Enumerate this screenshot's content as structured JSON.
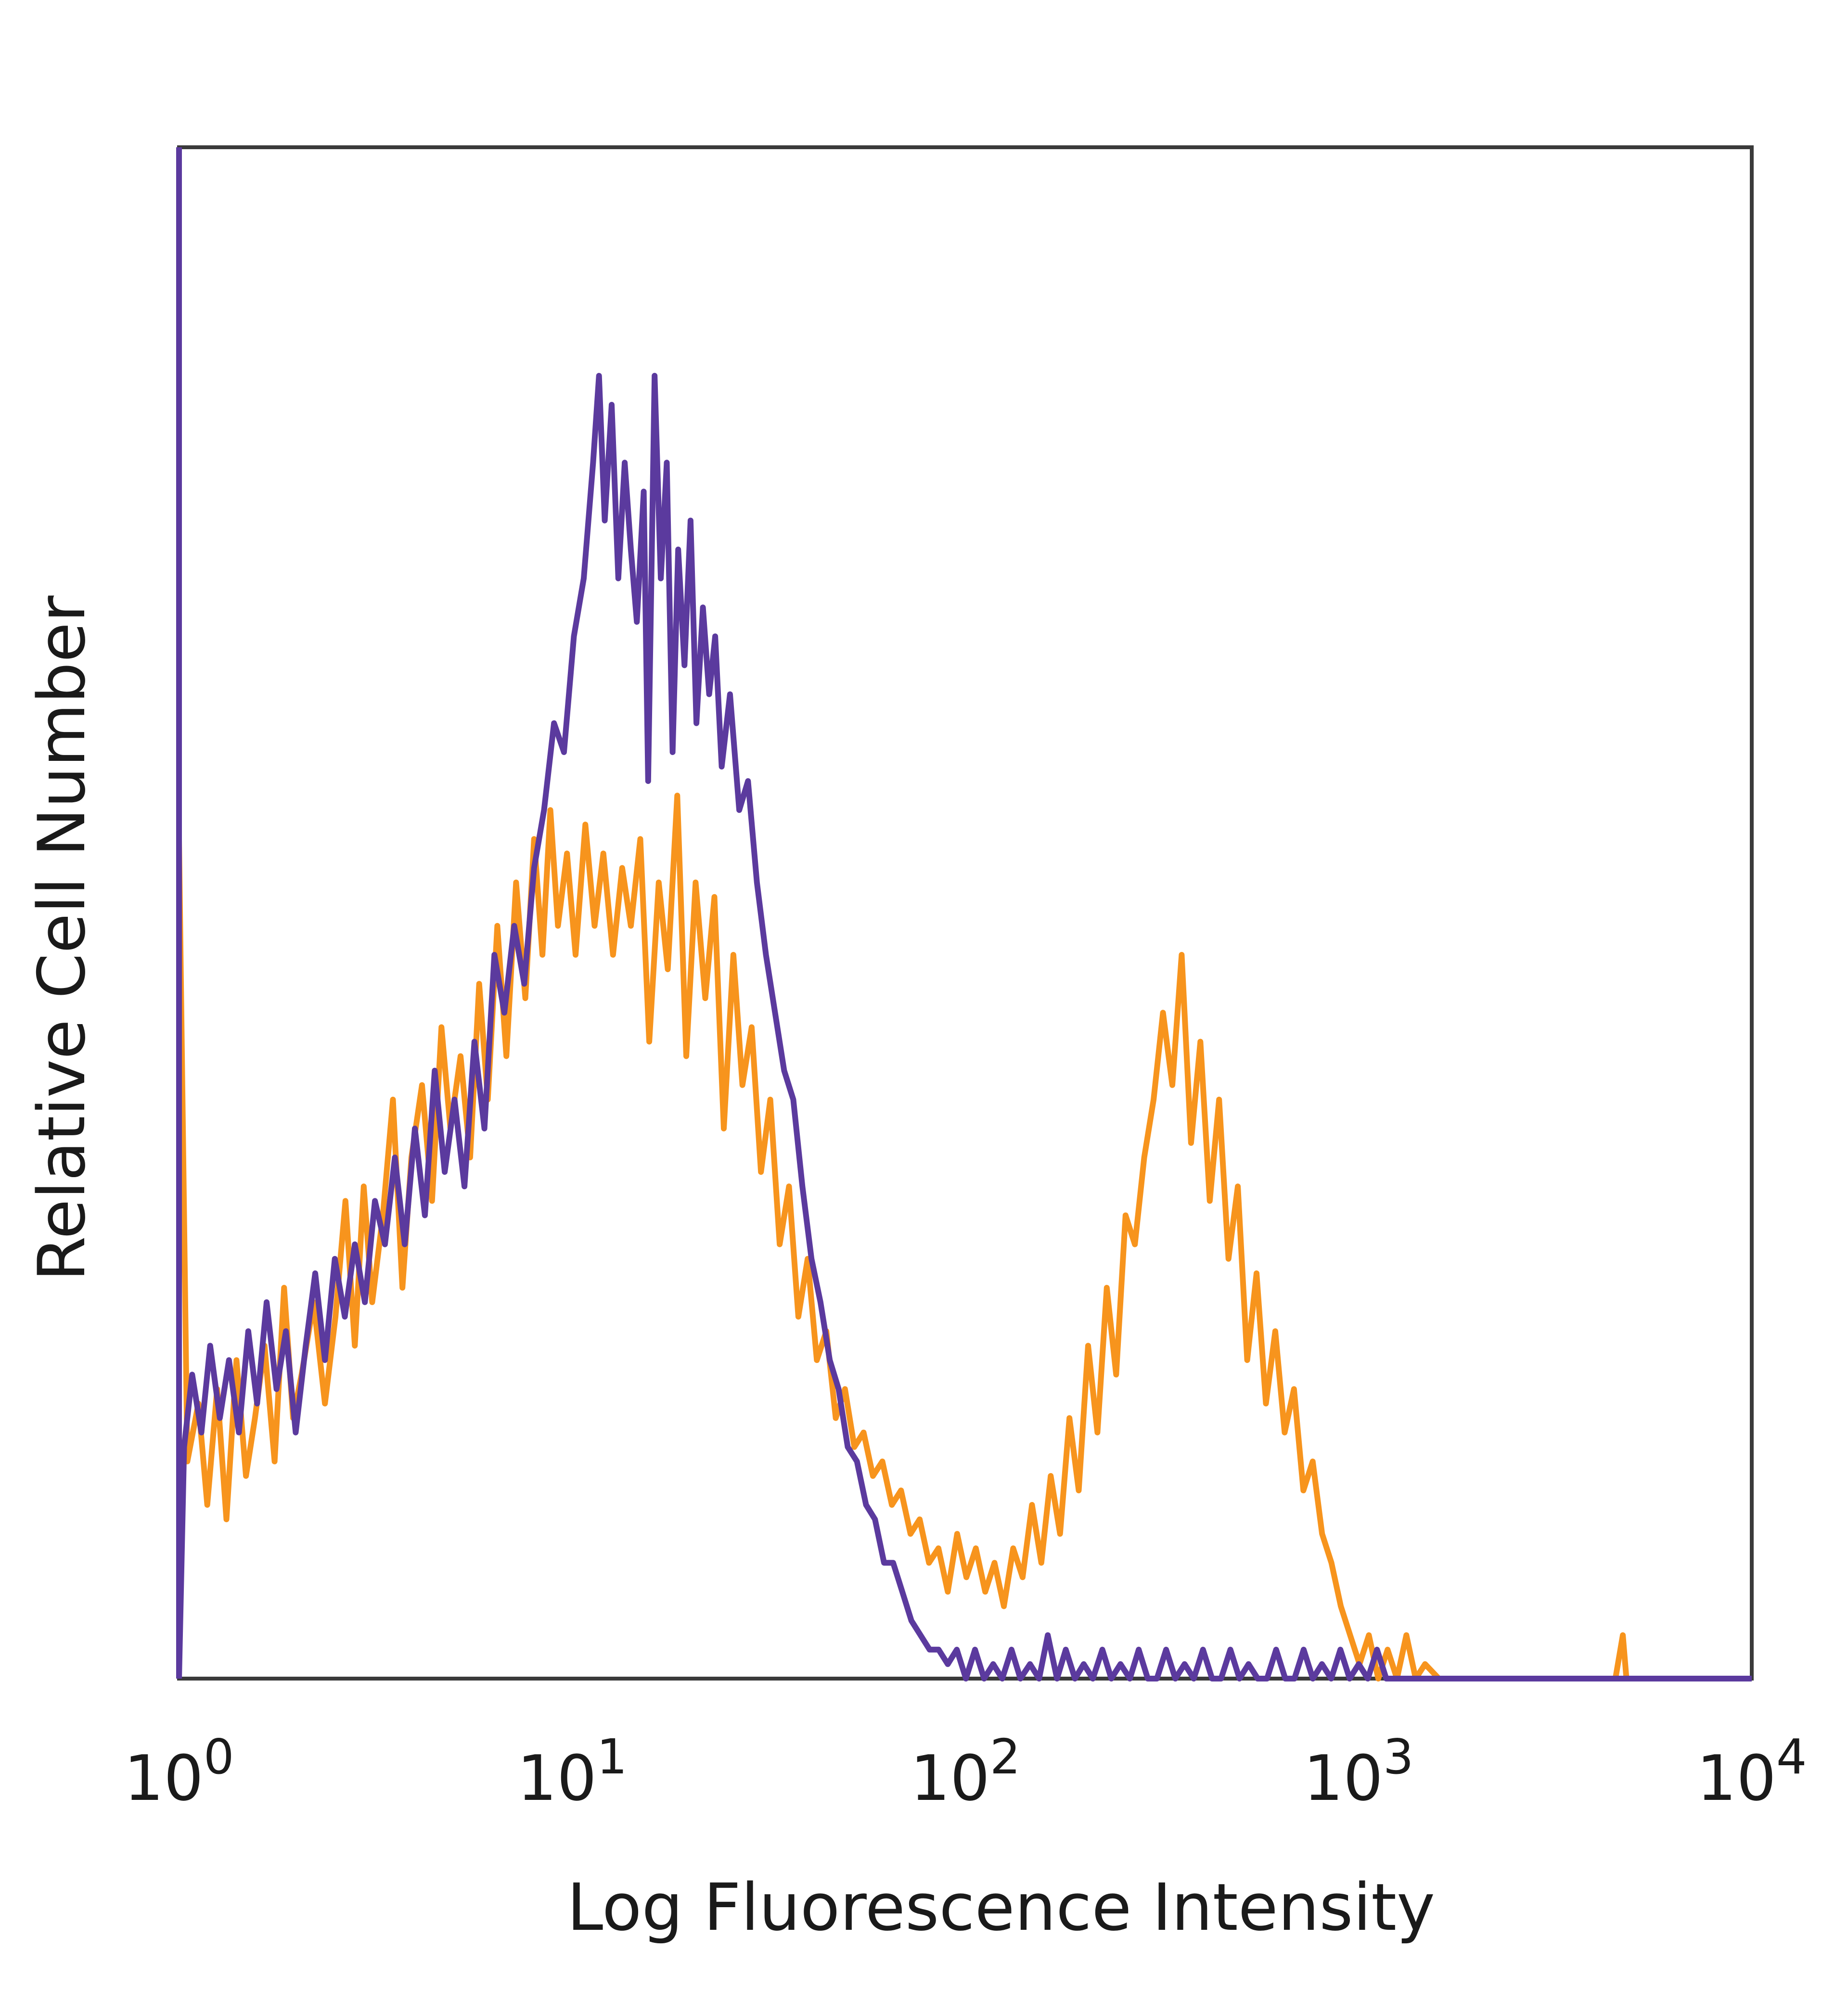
{
  "chart_data": {
    "type": "line",
    "title": "",
    "xlabel": "Log Fluorescence Intensity",
    "ylabel": "Relative Cell Number",
    "x_scale": "log",
    "xlim": [
      1,
      10000
    ],
    "ylim": [
      0,
      1
    ],
    "grid": false,
    "x_ticks": [
      {
        "value": 1,
        "base": "10",
        "exp": "0"
      },
      {
        "value": 10,
        "base": "10",
        "exp": "1"
      },
      {
        "value": 100,
        "base": "10",
        "exp": "2"
      },
      {
        "value": 1000,
        "base": "10",
        "exp": "3"
      },
      {
        "value": 10000,
        "base": "10",
        "exp": "4"
      }
    ],
    "series": [
      {
        "color": "#f7941d",
        "points": [
          [
            1.0,
            0.58
          ],
          [
            1.05,
            0.15
          ],
          [
            1.12,
            0.19
          ],
          [
            1.18,
            0.12
          ],
          [
            1.25,
            0.2
          ],
          [
            1.32,
            0.11
          ],
          [
            1.4,
            0.22
          ],
          [
            1.48,
            0.14
          ],
          [
            1.56,
            0.18
          ],
          [
            1.65,
            0.23
          ],
          [
            1.75,
            0.15
          ],
          [
            1.85,
            0.27
          ],
          [
            1.95,
            0.18
          ],
          [
            2.05,
            0.21
          ],
          [
            2.2,
            0.26
          ],
          [
            2.35,
            0.19
          ],
          [
            2.5,
            0.25
          ],
          [
            2.65,
            0.33
          ],
          [
            2.8,
            0.23
          ],
          [
            2.95,
            0.34
          ],
          [
            3.1,
            0.26
          ],
          [
            3.3,
            0.32
          ],
          [
            3.5,
            0.4
          ],
          [
            3.7,
            0.27
          ],
          [
            3.9,
            0.36
          ],
          [
            4.15,
            0.41
          ],
          [
            4.4,
            0.33
          ],
          [
            4.65,
            0.45
          ],
          [
            4.9,
            0.38
          ],
          [
            5.2,
            0.43
          ],
          [
            5.5,
            0.36
          ],
          [
            5.8,
            0.48
          ],
          [
            6.1,
            0.4
          ],
          [
            6.45,
            0.52
          ],
          [
            6.8,
            0.43
          ],
          [
            7.2,
            0.55
          ],
          [
            7.6,
            0.47
          ],
          [
            8.0,
            0.58
          ],
          [
            8.4,
            0.5
          ],
          [
            8.8,
            0.6
          ],
          [
            9.2,
            0.52
          ],
          [
            9.7,
            0.57
          ],
          [
            10.2,
            0.5
          ],
          [
            10.8,
            0.59
          ],
          [
            11.4,
            0.52
          ],
          [
            12.0,
            0.57
          ],
          [
            12.7,
            0.5
          ],
          [
            13.4,
            0.56
          ],
          [
            14.1,
            0.52
          ],
          [
            14.9,
            0.58
          ],
          [
            15.7,
            0.44
          ],
          [
            16.6,
            0.55
          ],
          [
            17.5,
            0.49
          ],
          [
            18.5,
            0.61
          ],
          [
            19.5,
            0.43
          ],
          [
            20.6,
            0.55
          ],
          [
            21.8,
            0.47
          ],
          [
            23.0,
            0.54
          ],
          [
            24.3,
            0.38
          ],
          [
            25.7,
            0.5
          ],
          [
            27.1,
            0.41
          ],
          [
            28.6,
            0.45
          ],
          [
            30.2,
            0.35
          ],
          [
            31.9,
            0.4
          ],
          [
            33.7,
            0.3
          ],
          [
            35.6,
            0.34
          ],
          [
            37.6,
            0.25
          ],
          [
            39.7,
            0.29
          ],
          [
            41.9,
            0.22
          ],
          [
            44.3,
            0.24
          ],
          [
            46.8,
            0.18
          ],
          [
            49.4,
            0.2
          ],
          [
            52.2,
            0.16
          ],
          [
            55.1,
            0.17
          ],
          [
            58.2,
            0.14
          ],
          [
            61.5,
            0.15
          ],
          [
            65.0,
            0.12
          ],
          [
            68.6,
            0.13
          ],
          [
            72.5,
            0.1
          ],
          [
            76.5,
            0.11
          ],
          [
            80.8,
            0.08
          ],
          [
            85.4,
            0.09
          ],
          [
            90.2,
            0.06
          ],
          [
            95.3,
            0.1
          ],
          [
            100.6,
            0.07
          ],
          [
            106.3,
            0.09
          ],
          [
            112.3,
            0.06
          ],
          [
            118.6,
            0.08
          ],
          [
            125.3,
            0.05
          ],
          [
            132.3,
            0.09
          ],
          [
            139.8,
            0.07
          ],
          [
            147.7,
            0.12
          ],
          [
            156.0,
            0.08
          ],
          [
            164.8,
            0.14
          ],
          [
            174.1,
            0.1
          ],
          [
            183.9,
            0.18
          ],
          [
            194.2,
            0.13
          ],
          [
            205.2,
            0.23
          ],
          [
            216.7,
            0.17
          ],
          [
            228.9,
            0.27
          ],
          [
            241.8,
            0.21
          ],
          [
            255.5,
            0.32
          ],
          [
            269.8,
            0.3
          ],
          [
            285.0,
            0.36
          ],
          [
            301.1,
            0.4
          ],
          [
            318.1,
            0.46
          ],
          [
            336.0,
            0.41
          ],
          [
            354.9,
            0.5
          ],
          [
            374.9,
            0.37
          ],
          [
            396.0,
            0.44
          ],
          [
            418.3,
            0.33
          ],
          [
            441.9,
            0.4
          ],
          [
            466.8,
            0.29
          ],
          [
            493.1,
            0.34
          ],
          [
            520.9,
            0.22
          ],
          [
            550.2,
            0.28
          ],
          [
            581.2,
            0.19
          ],
          [
            614.0,
            0.24
          ],
          [
            648.6,
            0.17
          ],
          [
            685.1,
            0.2
          ],
          [
            723.7,
            0.13
          ],
          [
            764.5,
            0.15
          ],
          [
            807.6,
            0.1
          ],
          [
            853.1,
            0.08
          ],
          [
            901.2,
            0.05
          ],
          [
            952.0,
            0.03
          ],
          [
            1005.6,
            0.01
          ],
          [
            1062.3,
            0.03
          ],
          [
            1122.2,
            0.0
          ],
          [
            1185.4,
            0.02
          ],
          [
            1252.2,
            0.0
          ],
          [
            1322.8,
            0.03
          ],
          [
            1397.3,
            0.0
          ],
          [
            1476.1,
            0.01
          ],
          [
            1600.0,
            0.0
          ],
          [
            2500.0,
            0.0
          ],
          [
            4500.0,
            0.0
          ],
          [
            4700.0,
            0.03
          ],
          [
            4800.0,
            0.0
          ],
          [
            10000.0,
            0.0
          ]
        ]
      },
      {
        "color": "#5b3a9e",
        "points": [
          [
            1.0,
            0.0
          ],
          [
            1.03,
            0.16
          ],
          [
            1.08,
            0.21
          ],
          [
            1.14,
            0.17
          ],
          [
            1.2,
            0.23
          ],
          [
            1.27,
            0.18
          ],
          [
            1.34,
            0.22
          ],
          [
            1.42,
            0.17
          ],
          [
            1.5,
            0.24
          ],
          [
            1.58,
            0.19
          ],
          [
            1.67,
            0.26
          ],
          [
            1.77,
            0.2
          ],
          [
            1.87,
            0.24
          ],
          [
            1.98,
            0.17
          ],
          [
            2.1,
            0.23
          ],
          [
            2.22,
            0.28
          ],
          [
            2.35,
            0.22
          ],
          [
            2.49,
            0.29
          ],
          [
            2.64,
            0.25
          ],
          [
            2.8,
            0.3
          ],
          [
            2.97,
            0.26
          ],
          [
            3.15,
            0.33
          ],
          [
            3.34,
            0.3
          ],
          [
            3.54,
            0.36
          ],
          [
            3.75,
            0.3
          ],
          [
            3.98,
            0.38
          ],
          [
            4.22,
            0.32
          ],
          [
            4.47,
            0.42
          ],
          [
            4.74,
            0.35
          ],
          [
            5.02,
            0.4
          ],
          [
            5.32,
            0.34
          ],
          [
            5.64,
            0.44
          ],
          [
            5.98,
            0.38
          ],
          [
            6.34,
            0.5
          ],
          [
            6.72,
            0.46
          ],
          [
            7.12,
            0.52
          ],
          [
            7.55,
            0.48
          ],
          [
            8.0,
            0.56
          ],
          [
            8.48,
            0.6
          ],
          [
            8.99,
            0.66
          ],
          [
            9.53,
            0.64
          ],
          [
            10.1,
            0.72
          ],
          [
            10.7,
            0.76
          ],
          [
            11.3,
            0.84
          ],
          [
            11.7,
            0.9
          ],
          [
            12.1,
            0.8
          ],
          [
            12.6,
            0.88
          ],
          [
            13.1,
            0.76
          ],
          [
            13.6,
            0.84
          ],
          [
            14.1,
            0.78
          ],
          [
            14.6,
            0.73
          ],
          [
            15.2,
            0.82
          ],
          [
            15.6,
            0.62
          ],
          [
            16.2,
            0.9
          ],
          [
            16.8,
            0.76
          ],
          [
            17.4,
            0.84
          ],
          [
            18.0,
            0.64
          ],
          [
            18.6,
            0.78
          ],
          [
            19.3,
            0.7
          ],
          [
            20.0,
            0.8
          ],
          [
            20.7,
            0.66
          ],
          [
            21.5,
            0.74
          ],
          [
            22.3,
            0.68
          ],
          [
            23.1,
            0.72
          ],
          [
            24.0,
            0.63
          ],
          [
            25.2,
            0.68
          ],
          [
            26.6,
            0.6
          ],
          [
            28.0,
            0.62
          ],
          [
            29.5,
            0.55
          ],
          [
            31.1,
            0.5
          ],
          [
            32.8,
            0.46
          ],
          [
            34.6,
            0.42
          ],
          [
            36.5,
            0.4
          ],
          [
            38.5,
            0.34
          ],
          [
            40.6,
            0.29
          ],
          [
            42.8,
            0.26
          ],
          [
            45.2,
            0.22
          ],
          [
            47.6,
            0.2
          ],
          [
            50.2,
            0.16
          ],
          [
            53.0,
            0.15
          ],
          [
            55.9,
            0.12
          ],
          [
            58.9,
            0.11
          ],
          [
            62.1,
            0.08
          ],
          [
            65.5,
            0.08
          ],
          [
            69.1,
            0.06
          ],
          [
            72.9,
            0.04
          ],
          [
            76.9,
            0.03
          ],
          [
            81.1,
            0.02
          ],
          [
            85.5,
            0.02
          ],
          [
            90.2,
            0.01
          ],
          [
            95.1,
            0.02
          ],
          [
            100.3,
            0.0
          ],
          [
            105.8,
            0.02
          ],
          [
            111.6,
            0.0
          ],
          [
            117.7,
            0.01
          ],
          [
            124.1,
            0.0
          ],
          [
            131.0,
            0.02
          ],
          [
            138.0,
            0.0
          ],
          [
            146.0,
            0.01
          ],
          [
            154.0,
            0.0
          ],
          [
            162.0,
            0.03
          ],
          [
            171.0,
            0.0
          ],
          [
            180.0,
            0.02
          ],
          [
            190.0,
            0.0
          ],
          [
            200.0,
            0.01
          ],
          [
            211.0,
            0.0
          ],
          [
            223.0,
            0.02
          ],
          [
            235.0,
            0.0
          ],
          [
            248.0,
            0.01
          ],
          [
            262.0,
            0.0
          ],
          [
            276.0,
            0.02
          ],
          [
            291.0,
            0.0
          ],
          [
            307.0,
            0.0
          ],
          [
            324.0,
            0.02
          ],
          [
            342.0,
            0.0
          ],
          [
            361.0,
            0.01
          ],
          [
            381.0,
            0.0
          ],
          [
            402.0,
            0.02
          ],
          [
            424.0,
            0.0
          ],
          [
            447.0,
            0.0
          ],
          [
            472.0,
            0.02
          ],
          [
            498.0,
            0.0
          ],
          [
            525.0,
            0.01
          ],
          [
            554.0,
            0.0
          ],
          [
            585.0,
            0.0
          ],
          [
            617.0,
            0.02
          ],
          [
            651.0,
            0.0
          ],
          [
            687.0,
            0.0
          ],
          [
            725.0,
            0.02
          ],
          [
            765.0,
            0.0
          ],
          [
            807.0,
            0.01
          ],
          [
            852.0,
            0.0
          ],
          [
            899.0,
            0.02
          ],
          [
            949.0,
            0.0
          ],
          [
            1001.0,
            0.01
          ],
          [
            1056.0,
            0.0
          ],
          [
            1114.0,
            0.02
          ],
          [
            1176.0,
            0.0
          ],
          [
            10000.0,
            0.0
          ]
        ]
      }
    ]
  }
}
